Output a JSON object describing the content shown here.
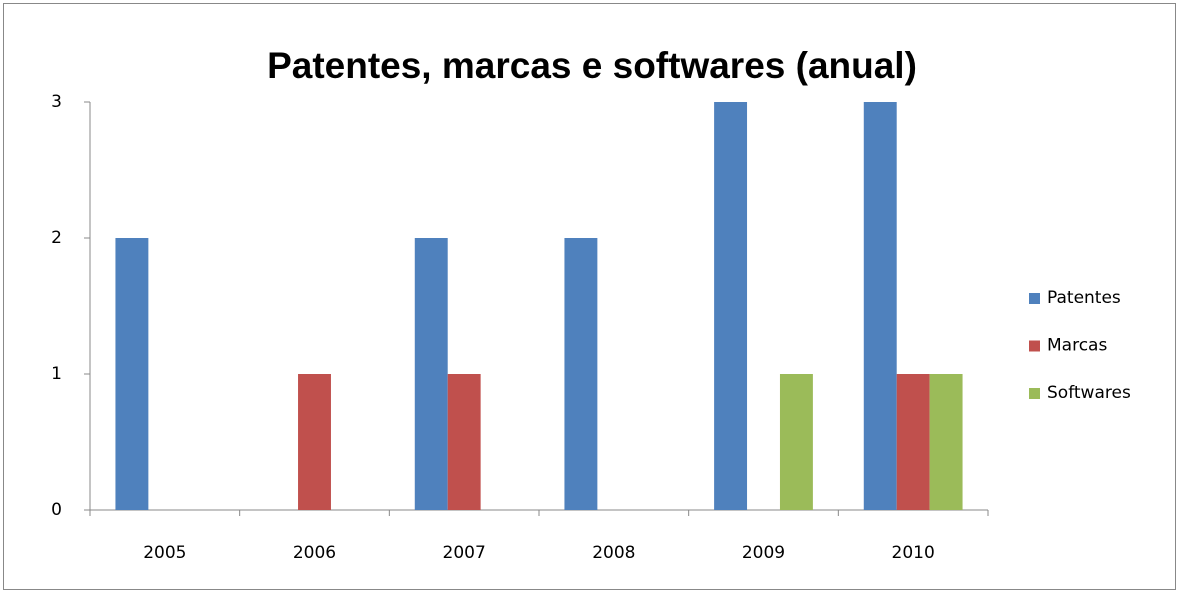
{
  "chart_data": {
    "type": "bar",
    "title": "Patentes, marcas e softwares (anual)",
    "categories": [
      "2005",
      "2006",
      "2007",
      "2008",
      "2009",
      "2010"
    ],
    "series": [
      {
        "name": "Patentes",
        "color": "#4f81bd",
        "values": [
          2,
          0,
          2,
          2,
          3,
          3
        ]
      },
      {
        "name": "Marcas",
        "color": "#c0504d",
        "values": [
          0,
          1,
          1,
          0,
          0,
          1
        ]
      },
      {
        "name": "Softwares",
        "color": "#9bbb59",
        "values": [
          0,
          0,
          0,
          0,
          1,
          1
        ]
      }
    ],
    "ylim": [
      0,
      3
    ],
    "yticks": [
      0,
      1,
      2,
      3
    ],
    "grid": false,
    "legend": "right"
  }
}
